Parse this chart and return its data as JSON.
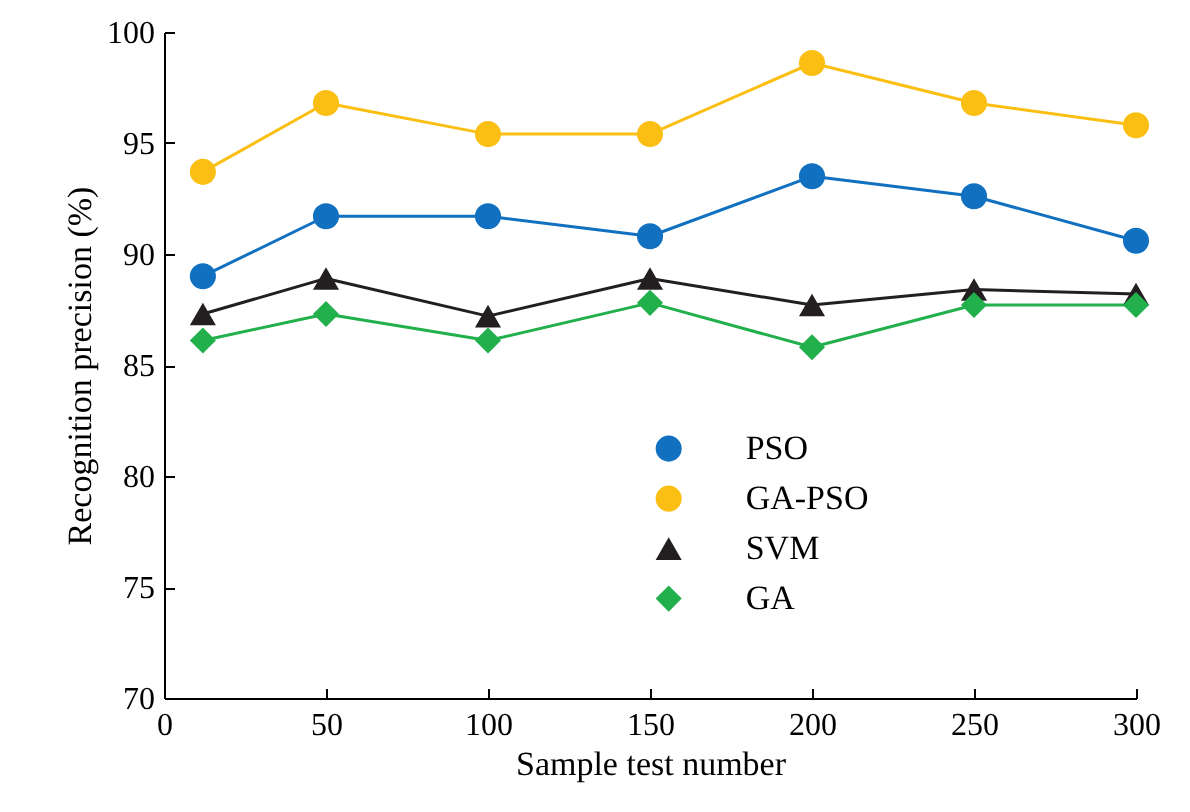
{
  "chart_data": {
    "type": "line",
    "xlabel": "Sample test number",
    "ylabel": "Recognition precision (%)",
    "x": [
      12,
      50,
      100,
      150,
      200,
      250,
      300
    ],
    "series": [
      {
        "name": "PSO",
        "color": "#1170c0",
        "marker": "circle",
        "values": [
          89.0,
          91.7,
          91.7,
          90.8,
          93.5,
          92.6,
          90.6
        ]
      },
      {
        "name": "GA-PSO",
        "color": "#fbbf14",
        "marker": "circle",
        "values": [
          93.7,
          96.8,
          95.4,
          95.4,
          98.6,
          96.8,
          95.8
        ]
      },
      {
        "name": "SVM",
        "color": "#231f20",
        "marker": "triangle",
        "values": [
          87.3,
          88.9,
          87.2,
          88.9,
          87.7,
          88.4,
          88.2
        ]
      },
      {
        "name": "GA",
        "color": "#21b04b",
        "marker": "diamond",
        "values": [
          86.1,
          87.3,
          86.1,
          87.8,
          85.8,
          87.7,
          87.7
        ]
      }
    ],
    "xlim": [
      0,
      300
    ],
    "xticks": [
      0,
      50,
      100,
      150,
      200,
      250,
      300
    ],
    "ylim": [
      70,
      100
    ],
    "yticks": [
      70,
      75,
      80,
      85,
      90,
      95,
      100
    ],
    "legend": "right",
    "grid": false,
    "line_style": "solid"
  }
}
